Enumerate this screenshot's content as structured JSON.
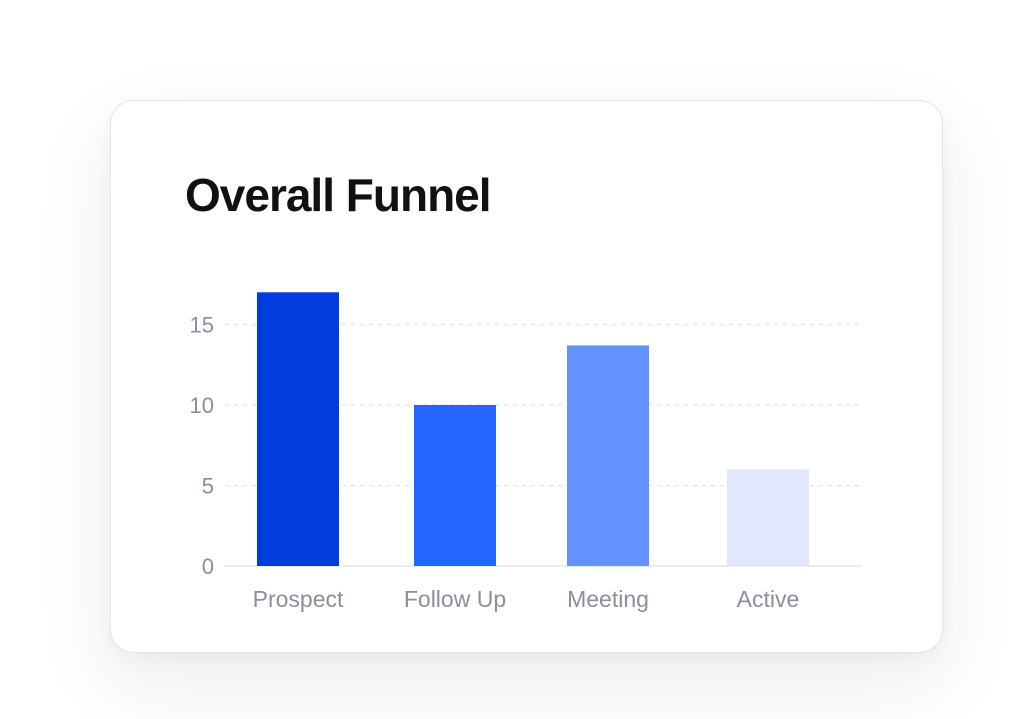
{
  "chart_data": {
    "type": "bar",
    "title": "Overall Funnel",
    "xlabel": "",
    "ylabel": "",
    "categories": [
      "Prospect",
      "Follow Up",
      "Meeting",
      "Active"
    ],
    "values": [
      17,
      10,
      13.7,
      6
    ],
    "ylim": [
      0,
      17
    ],
    "yticks": [
      0,
      5,
      10,
      15
    ],
    "ytick_labels": [
      "0",
      "5",
      "10",
      "15"
    ],
    "grid": true,
    "legend": "none",
    "colors": [
      "#003DDC",
      "#2465FF",
      "#6391FF",
      "#E1E7FF"
    ]
  },
  "colors": {
    "title": "#111111",
    "tick_label": "#8A8F9C",
    "grid": "#E0E2E7",
    "baseline": "#E3E5E9"
  }
}
